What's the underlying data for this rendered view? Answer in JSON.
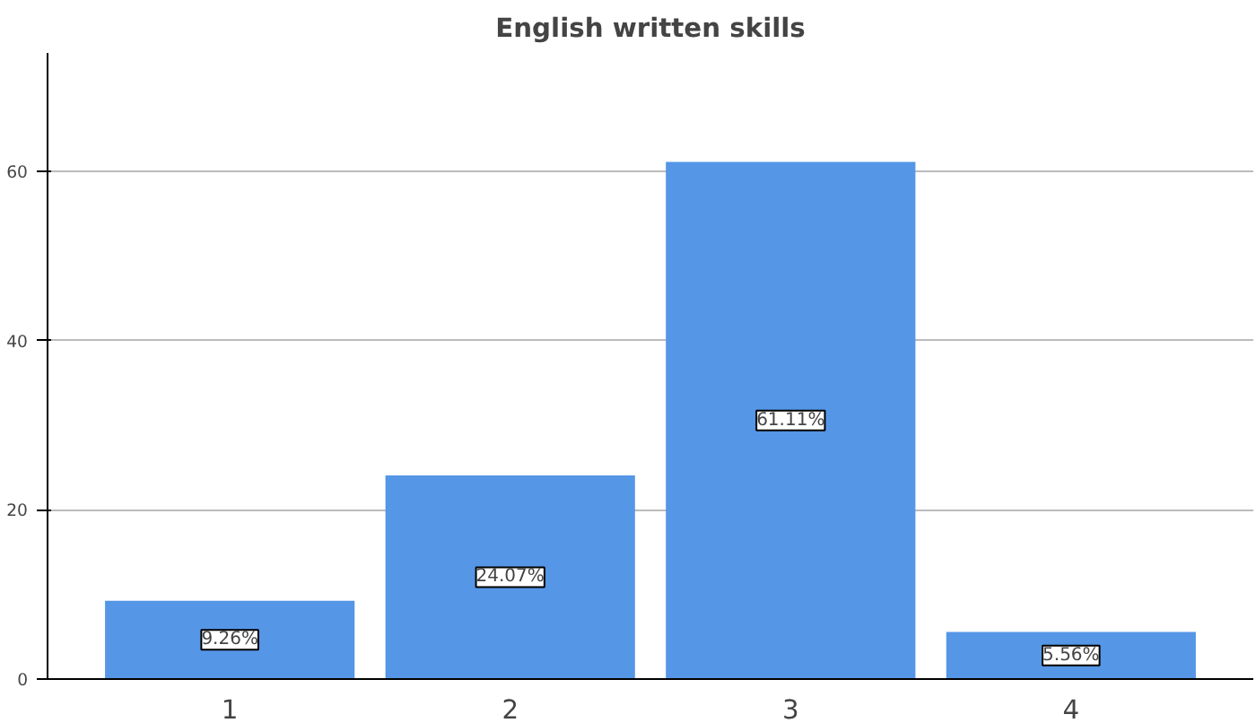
{
  "chart_data": {
    "type": "bar",
    "title": "English written skills",
    "categories": [
      "1",
      "2",
      "3",
      "4"
    ],
    "values": [
      9.26,
      24.07,
      61.11,
      5.56
    ],
    "value_labels": [
      "9.26%",
      "24.07%",
      "61.11%",
      "5.56%"
    ],
    "color": "#5596e6",
    "ylim": [
      0,
      74
    ],
    "yticks": [
      0,
      20,
      40,
      60
    ],
    "grid": "y"
  }
}
